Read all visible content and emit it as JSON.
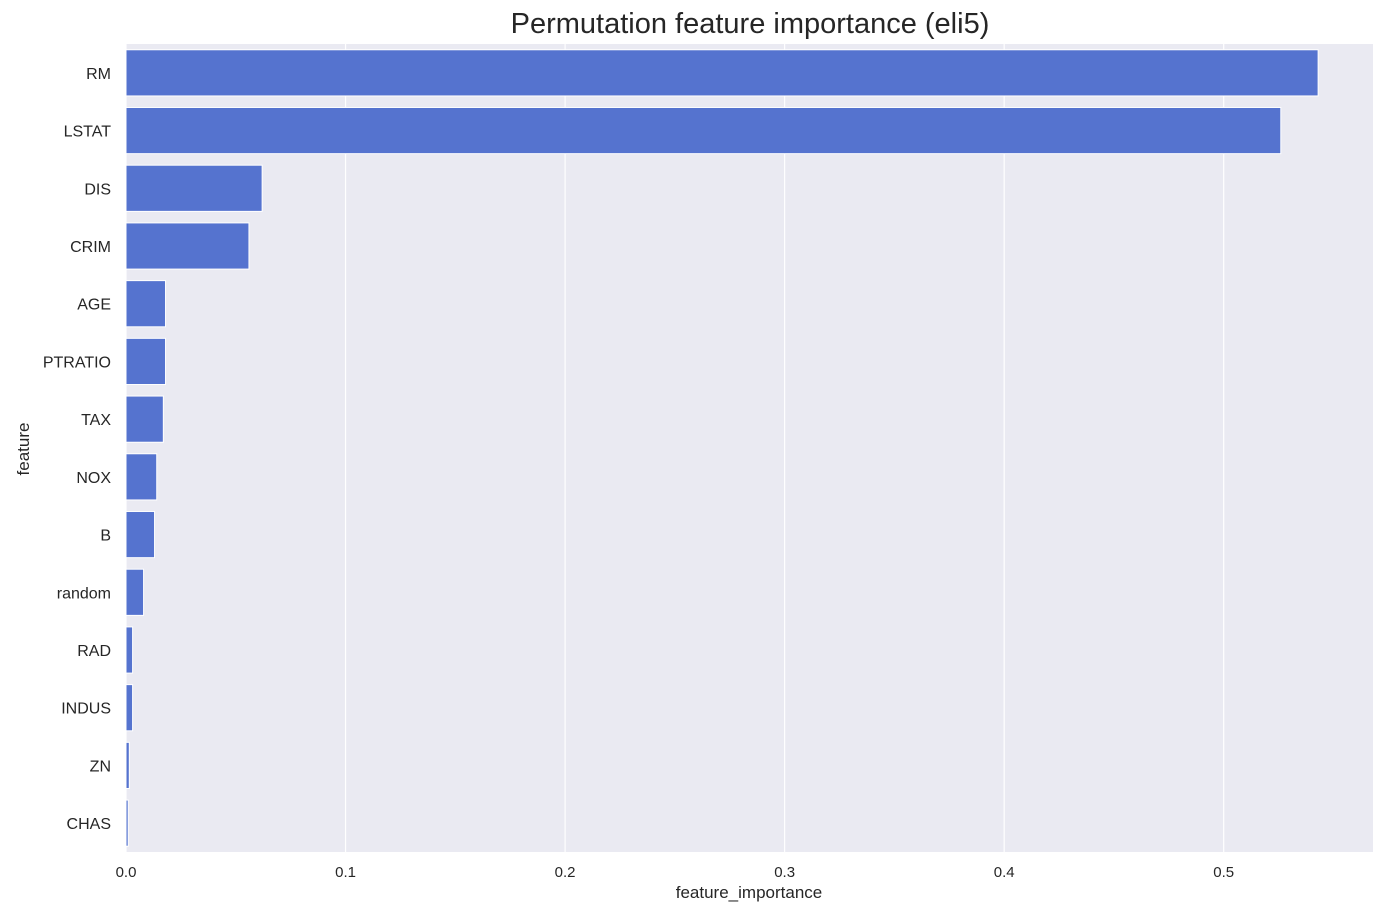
{
  "chart_data": {
    "type": "bar",
    "orientation": "horizontal",
    "title": "Permutation feature importance (eli5)",
    "xlabel": "feature_importance",
    "ylabel": "feature",
    "categories": [
      "RM",
      "LSTAT",
      "DIS",
      "CRIM",
      "AGE",
      "PTRATIO",
      "TAX",
      "NOX",
      "B",
      "random",
      "RAD",
      "INDUS",
      "ZN",
      "CHAS"
    ],
    "values": [
      0.543,
      0.526,
      0.062,
      0.056,
      0.018,
      0.018,
      0.017,
      0.014,
      0.013,
      0.008,
      0.003,
      0.003,
      0.0015,
      0.001
    ],
    "xlim": [
      0,
      0.568
    ],
    "xticks": [
      0.0,
      0.1,
      0.2,
      0.3,
      0.4,
      0.5
    ],
    "xtick_labels": [
      "0.0",
      "0.1",
      "0.2",
      "0.3",
      "0.4",
      "0.5"
    ],
    "grid": true,
    "colors": {
      "bar": "#5573CF",
      "plot_background": "#EAEAF2",
      "grid": "#FFFFFF",
      "text": "#262626"
    }
  }
}
